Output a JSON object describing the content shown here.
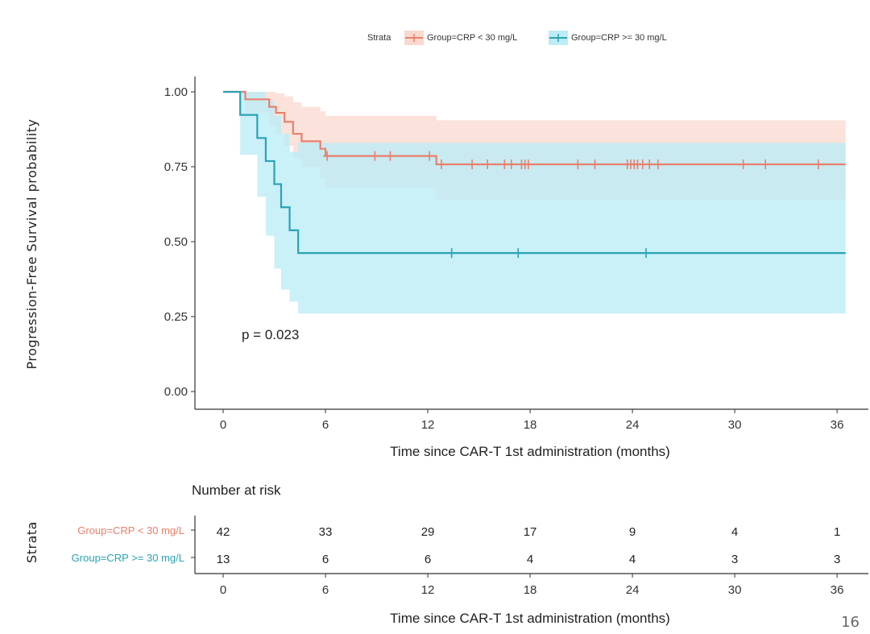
{
  "legend": {
    "title": "Strata",
    "entries": [
      "Group=CRP < 30 mg/L",
      "Group=CRP >= 30 mg/L"
    ]
  },
  "chart_data": {
    "type": "line",
    "subtype": "kaplan-meier",
    "ylabel": "Progression-Free Survival probability",
    "xlabel": "Time since CAR-T 1st administration (months)",
    "xlim": [
      0,
      36
    ],
    "ylim": [
      0,
      1
    ],
    "xticks": [
      0,
      6,
      12,
      18,
      24,
      30,
      36
    ],
    "yticks": [
      0,
      0.25,
      0.5,
      0.75,
      1.0
    ],
    "ytick_labels": [
      "0.00",
      "0.25",
      "0.50",
      "0.75",
      "1.00"
    ],
    "annotation": "p = 0.023",
    "series": [
      {
        "name": "Group=CRP < 30 mg/L",
        "color": "#e8806c",
        "band_color": "#f9d8cf",
        "steps": [
          [
            0,
            1.0
          ],
          [
            1.3,
            0.975
          ],
          [
            2.7,
            0.95
          ],
          [
            3.1,
            0.93
          ],
          [
            3.6,
            0.9
          ],
          [
            4.1,
            0.86
          ],
          [
            4.6,
            0.835
          ],
          [
            5.7,
            0.81
          ],
          [
            6.0,
            0.786
          ],
          [
            12.5,
            0.758
          ],
          [
            36.5,
            0.758
          ]
        ],
        "upper": [
          [
            0,
            1.0
          ],
          [
            1.3,
            1.0
          ],
          [
            2.7,
            1.0
          ],
          [
            3.1,
            0.995
          ],
          [
            3.6,
            0.985
          ],
          [
            4.1,
            0.965
          ],
          [
            4.6,
            0.95
          ],
          [
            5.7,
            0.935
          ],
          [
            6.0,
            0.92
          ],
          [
            12.5,
            0.905
          ],
          [
            36.5,
            0.905
          ]
        ],
        "lower": [
          [
            0,
            1.0
          ],
          [
            1.3,
            0.93
          ],
          [
            2.7,
            0.885
          ],
          [
            3.1,
            0.86
          ],
          [
            3.6,
            0.82
          ],
          [
            4.1,
            0.78
          ],
          [
            4.6,
            0.75
          ],
          [
            5.7,
            0.71
          ],
          [
            6.0,
            0.68
          ],
          [
            12.5,
            0.64
          ],
          [
            36.5,
            0.64
          ]
        ],
        "censor_times": [
          6.1,
          8.9,
          9.8,
          12.1,
          12.8,
          14.6,
          15.5,
          16.5,
          16.9,
          17.5,
          17.7,
          17.9,
          20.8,
          21.8,
          23.7,
          23.9,
          24.1,
          24.3,
          24.6,
          25.0,
          25.5,
          30.5,
          31.8,
          34.9
        ],
        "risk_table": [
          42,
          33,
          29,
          17,
          9,
          4,
          1
        ]
      },
      {
        "name": "Group=CRP >= 30 mg/L",
        "color": "#2aa3b5",
        "band_color": "#bdecf6",
        "steps": [
          [
            0,
            1.0
          ],
          [
            1.0,
            0.923
          ],
          [
            2.0,
            0.846
          ],
          [
            2.5,
            0.769
          ],
          [
            3.0,
            0.692
          ],
          [
            3.4,
            0.615
          ],
          [
            3.9,
            0.538
          ],
          [
            4.4,
            0.462
          ],
          [
            36.5,
            0.462
          ]
        ],
        "upper": [
          [
            0,
            1.0
          ],
          [
            1.0,
            1.0
          ],
          [
            2.0,
            1.0
          ],
          [
            2.5,
            0.97
          ],
          [
            3.0,
            0.92
          ],
          [
            3.4,
            0.86
          ],
          [
            3.9,
            0.8
          ],
          [
            4.4,
            0.83
          ],
          [
            36.5,
            0.83
          ]
        ],
        "lower": [
          [
            0,
            1.0
          ],
          [
            1.0,
            0.79
          ],
          [
            2.0,
            0.65
          ],
          [
            2.5,
            0.52
          ],
          [
            3.0,
            0.41
          ],
          [
            3.4,
            0.34
          ],
          [
            3.9,
            0.3
          ],
          [
            4.4,
            0.26
          ],
          [
            36.5,
            0.26
          ]
        ],
        "censor_times": [
          13.4,
          17.3,
          24.8
        ],
        "risk_table": [
          13,
          6,
          6,
          4,
          4,
          3,
          3
        ]
      }
    ]
  },
  "risk_table": {
    "title": "Number at risk",
    "strata_label": "Strata",
    "row_labels": [
      "Group=CRP < 30 mg/L",
      "Group=CRP >= 30 mg/L"
    ],
    "xlabel": "Time since CAR-T 1st administration (months)",
    "xticks": [
      "0",
      "6",
      "12",
      "18",
      "24",
      "30",
      "36"
    ]
  },
  "slide_number": "16"
}
